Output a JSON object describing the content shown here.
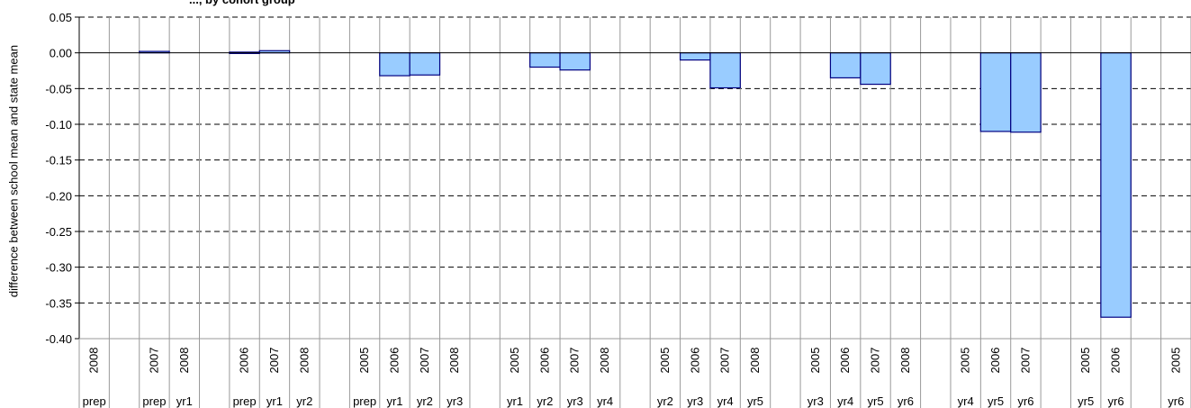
{
  "chart_data": {
    "type": "bar",
    "title": "..., by cohort group",
    "xlabel": "",
    "ylabel": "difference between school mean and state mean",
    "ylim": [
      -0.4,
      0.05
    ],
    "yticks": [
      "0.05",
      "0.00",
      "-0.05",
      "-0.10",
      "-0.15",
      "-0.20",
      "-0.25",
      "-0.30",
      "-0.35",
      "-0.40"
    ],
    "ytick_values": [
      0.05,
      0,
      -0.05,
      -0.1,
      -0.15,
      -0.2,
      -0.25,
      -0.3,
      -0.35,
      -0.4
    ],
    "grid": true,
    "bar_color": "#99ccff",
    "bar_edge": "#000080",
    "categories": [
      {
        "year": "2008",
        "level": "prep",
        "value": null
      },
      {
        "year": "",
        "level": "",
        "value": null
      },
      {
        "year": "2007",
        "level": "prep",
        "value": 0.002
      },
      {
        "year": "2008",
        "level": "yr1",
        "value": null
      },
      {
        "year": "",
        "level": "",
        "value": null
      },
      {
        "year": "2006",
        "level": "prep",
        "value": 0.001
      },
      {
        "year": "2007",
        "level": "yr1",
        "value": 0.003
      },
      {
        "year": "2008",
        "level": "yr2",
        "value": null
      },
      {
        "year": "",
        "level": "",
        "value": null
      },
      {
        "year": "2005",
        "level": "prep",
        "value": null
      },
      {
        "year": "2006",
        "level": "yr1",
        "value": -0.032
      },
      {
        "year": "2007",
        "level": "yr2",
        "value": -0.031
      },
      {
        "year": "2008",
        "level": "yr3",
        "value": null
      },
      {
        "year": "",
        "level": "",
        "value": null
      },
      {
        "year": "2005",
        "level": "yr1",
        "value": null
      },
      {
        "year": "2006",
        "level": "yr2",
        "value": -0.02
      },
      {
        "year": "2007",
        "level": "yr3",
        "value": -0.024
      },
      {
        "year": "2008",
        "level": "yr4",
        "value": null
      },
      {
        "year": "",
        "level": "",
        "value": null
      },
      {
        "year": "2005",
        "level": "yr2",
        "value": null
      },
      {
        "year": "2006",
        "level": "yr3",
        "value": -0.01
      },
      {
        "year": "2007",
        "level": "yr4",
        "value": -0.049
      },
      {
        "year": "2008",
        "level": "yr5",
        "value": null
      },
      {
        "year": "",
        "level": "",
        "value": null
      },
      {
        "year": "2005",
        "level": "yr3",
        "value": null
      },
      {
        "year": "2006",
        "level": "yr4",
        "value": -0.035
      },
      {
        "year": "2007",
        "level": "yr5",
        "value": -0.044
      },
      {
        "year": "2008",
        "level": "yr6",
        "value": null
      },
      {
        "year": "",
        "level": "",
        "value": null
      },
      {
        "year": "2005",
        "level": "yr4",
        "value": null
      },
      {
        "year": "2006",
        "level": "yr5",
        "value": -0.11
      },
      {
        "year": "2007",
        "level": "yr6",
        "value": -0.111
      },
      {
        "year": "",
        "level": "",
        "value": null
      },
      {
        "year": "2005",
        "level": "yr5",
        "value": null
      },
      {
        "year": "2006",
        "level": "yr6",
        "value": -0.37
      },
      {
        "year": "",
        "level": "",
        "value": null
      },
      {
        "year": "2005",
        "level": "yr6",
        "value": null
      }
    ]
  }
}
